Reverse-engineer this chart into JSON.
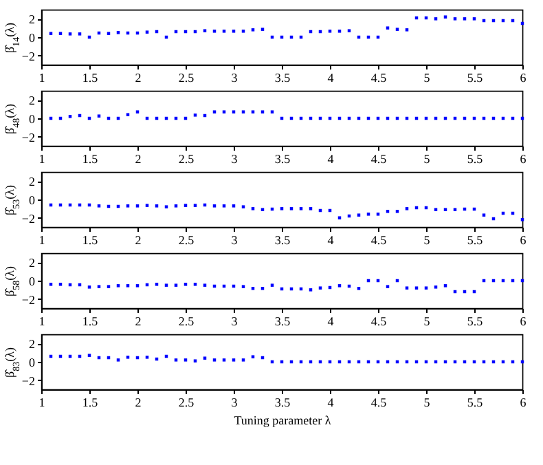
{
  "chart_data": [
    {
      "type": "scatter",
      "ylabel": "β̂$_{14}$(λ)",
      "x": [
        1.1,
        1.2,
        1.3,
        1.4,
        1.5,
        1.6,
        1.7,
        1.8,
        1.9,
        2.0,
        2.1,
        2.2,
        2.3,
        2.4,
        2.5,
        2.6,
        2.7,
        2.8,
        2.9,
        3.0,
        3.1,
        3.2,
        3.3,
        3.4,
        3.5,
        3.6,
        3.7,
        3.8,
        3.9,
        4.0,
        4.1,
        4.2,
        4.3,
        4.4,
        4.5,
        4.6,
        4.7,
        4.8,
        4.9,
        5.0,
        5.1,
        5.2,
        5.3,
        5.4,
        5.5,
        5.6,
        5.7,
        5.8,
        5.9,
        6.0
      ],
      "series": [
        {
          "color": "#0000ff",
          "values": [
            0.4,
            0.4,
            0.35,
            0.35,
            0,
            0.45,
            0.4,
            0.5,
            0.45,
            0.45,
            0.55,
            0.6,
            0,
            0.6,
            0.6,
            0.6,
            0.7,
            0.65,
            0.65,
            0.65,
            0.65,
            0.8,
            0.85,
            0,
            0,
            0,
            0,
            0.6,
            0.6,
            0.65,
            0.65,
            0.7,
            0,
            0,
            0,
            1.0,
            0.85,
            0.8,
            2.1,
            2.1,
            2.0,
            2.2,
            2.0,
            2.0,
            2.0,
            1.8,
            1.8,
            1.8,
            1.8,
            1.5
          ]
        }
      ],
      "xlim": [
        1,
        6
      ],
      "xticks": [
        1,
        1.5,
        2,
        2.5,
        3,
        3.5,
        4,
        4.5,
        5,
        5.5,
        6
      ],
      "ylim": [
        -3,
        3
      ],
      "yticks": [
        -2,
        0,
        2
      ],
      "marker": "square"
    },
    {
      "type": "scatter",
      "ylabel": "β̂$_{48}$(λ)",
      "x": [
        1.1,
        1.2,
        1.3,
        1.4,
        1.5,
        1.6,
        1.7,
        1.8,
        1.9,
        2.0,
        2.1,
        2.2,
        2.3,
        2.4,
        2.5,
        2.6,
        2.7,
        2.8,
        2.9,
        3.0,
        3.1,
        3.2,
        3.3,
        3.4,
        3.5,
        3.6,
        3.7,
        3.8,
        3.9,
        4.0,
        4.1,
        4.2,
        4.3,
        4.4,
        4.5,
        4.6,
        4.7,
        4.8,
        4.9,
        5.0,
        5.1,
        5.2,
        5.3,
        5.4,
        5.5,
        5.6,
        5.7,
        5.8,
        5.9,
        6.0
      ],
      "series": [
        {
          "color": "#0000ff",
          "values": [
            0,
            0,
            0.2,
            0.3,
            0,
            0.25,
            0,
            0,
            0.4,
            0.7,
            0,
            0,
            0,
            0,
            0,
            0.35,
            0.3,
            0.7,
            0.7,
            0.7,
            0.7,
            0.7,
            0.7,
            0.7,
            0,
            0,
            0,
            0,
            0,
            0,
            0,
            0,
            0,
            0,
            0,
            0,
            0,
            0,
            0,
            0,
            0,
            0,
            0,
            0,
            0,
            0,
            0,
            0,
            0,
            0
          ]
        }
      ],
      "xlim": [
        1,
        6
      ],
      "xticks": [
        1,
        1.5,
        2,
        2.5,
        3,
        3.5,
        4,
        4.5,
        5,
        5.5,
        6
      ],
      "ylim": [
        -3,
        3
      ],
      "yticks": [
        -2,
        0,
        2
      ],
      "marker": "square"
    },
    {
      "type": "scatter",
      "ylabel": "β̂$_{53}$(λ)",
      "x": [
        1.1,
        1.2,
        1.3,
        1.4,
        1.5,
        1.6,
        1.7,
        1.8,
        1.9,
        2.0,
        2.1,
        2.2,
        2.3,
        2.4,
        2.5,
        2.6,
        2.7,
        2.8,
        2.9,
        3.0,
        3.1,
        3.2,
        3.3,
        3.4,
        3.5,
        3.6,
        3.7,
        3.8,
        3.9,
        4.0,
        4.1,
        4.2,
        4.3,
        4.4,
        4.5,
        4.6,
        4.7,
        4.8,
        4.9,
        5.0,
        5.1,
        5.2,
        5.3,
        5.4,
        5.5,
        5.6,
        5.7,
        5.8,
        5.9,
        6.0
      ],
      "series": [
        {
          "color": "#0000ff",
          "values": [
            -0.6,
            -0.6,
            -0.6,
            -0.6,
            -0.6,
            -0.7,
            -0.75,
            -0.75,
            -0.7,
            -0.7,
            -0.65,
            -0.7,
            -0.8,
            -0.7,
            -0.65,
            -0.65,
            -0.6,
            -0.7,
            -0.7,
            -0.7,
            -0.8,
            -1.0,
            -1.1,
            -1.05,
            -1.0,
            -1.0,
            -1.0,
            -1.0,
            -1.2,
            -1.2,
            -2.0,
            -1.8,
            -1.7,
            -1.6,
            -1.6,
            -1.3,
            -1.3,
            -1.0,
            -0.9,
            -0.9,
            -1.1,
            -1.1,
            -1.1,
            -1.05,
            -1.05,
            -1.7,
            -2.1,
            -1.5,
            -1.5,
            -2.2
          ]
        }
      ],
      "xlim": [
        1,
        6
      ],
      "xticks": [
        1,
        1.5,
        2,
        2.5,
        3,
        3.5,
        4,
        4.5,
        5,
        5.5,
        6
      ],
      "ylim": [
        -3,
        3
      ],
      "yticks": [
        -2,
        0,
        2
      ],
      "marker": "square"
    },
    {
      "type": "scatter",
      "ylabel": "β̂$_{58}$(λ)",
      "x": [
        1.1,
        1.2,
        1.3,
        1.4,
        1.5,
        1.6,
        1.7,
        1.8,
        1.9,
        2.0,
        2.1,
        2.2,
        2.3,
        2.4,
        2.5,
        2.6,
        2.7,
        2.8,
        2.9,
        3.0,
        3.1,
        3.2,
        3.3,
        3.4,
        3.5,
        3.6,
        3.7,
        3.8,
        3.9,
        4.0,
        4.1,
        4.2,
        4.3,
        4.4,
        4.5,
        4.6,
        4.7,
        4.8,
        4.9,
        5.0,
        5.1,
        5.2,
        5.3,
        5.4,
        5.5,
        5.6,
        5.7,
        5.8,
        5.9,
        6.0
      ],
      "series": [
        {
          "color": "#0000ff",
          "values": [
            -0.4,
            -0.4,
            -0.45,
            -0.45,
            -0.7,
            -0.65,
            -0.65,
            -0.55,
            -0.55,
            -0.55,
            -0.45,
            -0.4,
            -0.5,
            -0.5,
            -0.4,
            -0.4,
            -0.5,
            -0.6,
            -0.6,
            -0.6,
            -0.65,
            -0.85,
            -0.85,
            -0.5,
            -0.9,
            -0.9,
            -0.9,
            -1.0,
            -0.8,
            -0.75,
            -0.55,
            -0.6,
            -0.85,
            0,
            0,
            -0.65,
            0,
            -0.8,
            -0.8,
            -0.8,
            -0.7,
            -0.55,
            -1.2,
            -1.2,
            -1.2,
            0,
            0,
            0,
            0,
            0
          ]
        }
      ],
      "xlim": [
        1,
        6
      ],
      "xticks": [
        1,
        1.5,
        2,
        2.5,
        3,
        3.5,
        4,
        4.5,
        5,
        5.5,
        6
      ],
      "ylim": [
        -3,
        3
      ],
      "yticks": [
        -2,
        0,
        2
      ],
      "marker": "square"
    },
    {
      "type": "scatter",
      "ylabel": "β̂$_{83}$(λ)",
      "xlabel": "Tuning parameter λ",
      "x": [
        1.1,
        1.2,
        1.3,
        1.4,
        1.5,
        1.6,
        1.7,
        1.8,
        1.9,
        2.0,
        2.1,
        2.2,
        2.3,
        2.4,
        2.5,
        2.6,
        2.7,
        2.8,
        2.9,
        3.0,
        3.1,
        3.2,
        3.3,
        3.4,
        3.5,
        3.6,
        3.7,
        3.8,
        3.9,
        4.0,
        4.1,
        4.2,
        4.3,
        4.4,
        4.5,
        4.6,
        4.7,
        4.8,
        4.9,
        5.0,
        5.1,
        5.2,
        5.3,
        5.4,
        5.5,
        5.6,
        5.7,
        5.8,
        5.9,
        6.0
      ],
      "series": [
        {
          "color": "#0000ff",
          "values": [
            0.6,
            0.6,
            0.6,
            0.6,
            0.7,
            0.45,
            0.45,
            0.2,
            0.5,
            0.45,
            0.5,
            0.3,
            0.6,
            0.2,
            0.2,
            0.1,
            0.4,
            0.2,
            0.2,
            0.2,
            0.2,
            0.55,
            0.45,
            0,
            0,
            0,
            0,
            0,
            0,
            0,
            0,
            0,
            0,
            0,
            0,
            0,
            0,
            0,
            0,
            0,
            0,
            0,
            0,
            0,
            0,
            0,
            0,
            0,
            0,
            0
          ]
        }
      ],
      "xlim": [
        1,
        6
      ],
      "xticks": [
        1,
        1.5,
        2,
        2.5,
        3,
        3.5,
        4,
        4.5,
        5,
        5.5,
        6
      ],
      "ylim": [
        -3,
        3
      ],
      "yticks": [
        -2,
        0,
        2
      ],
      "marker": "square"
    }
  ]
}
